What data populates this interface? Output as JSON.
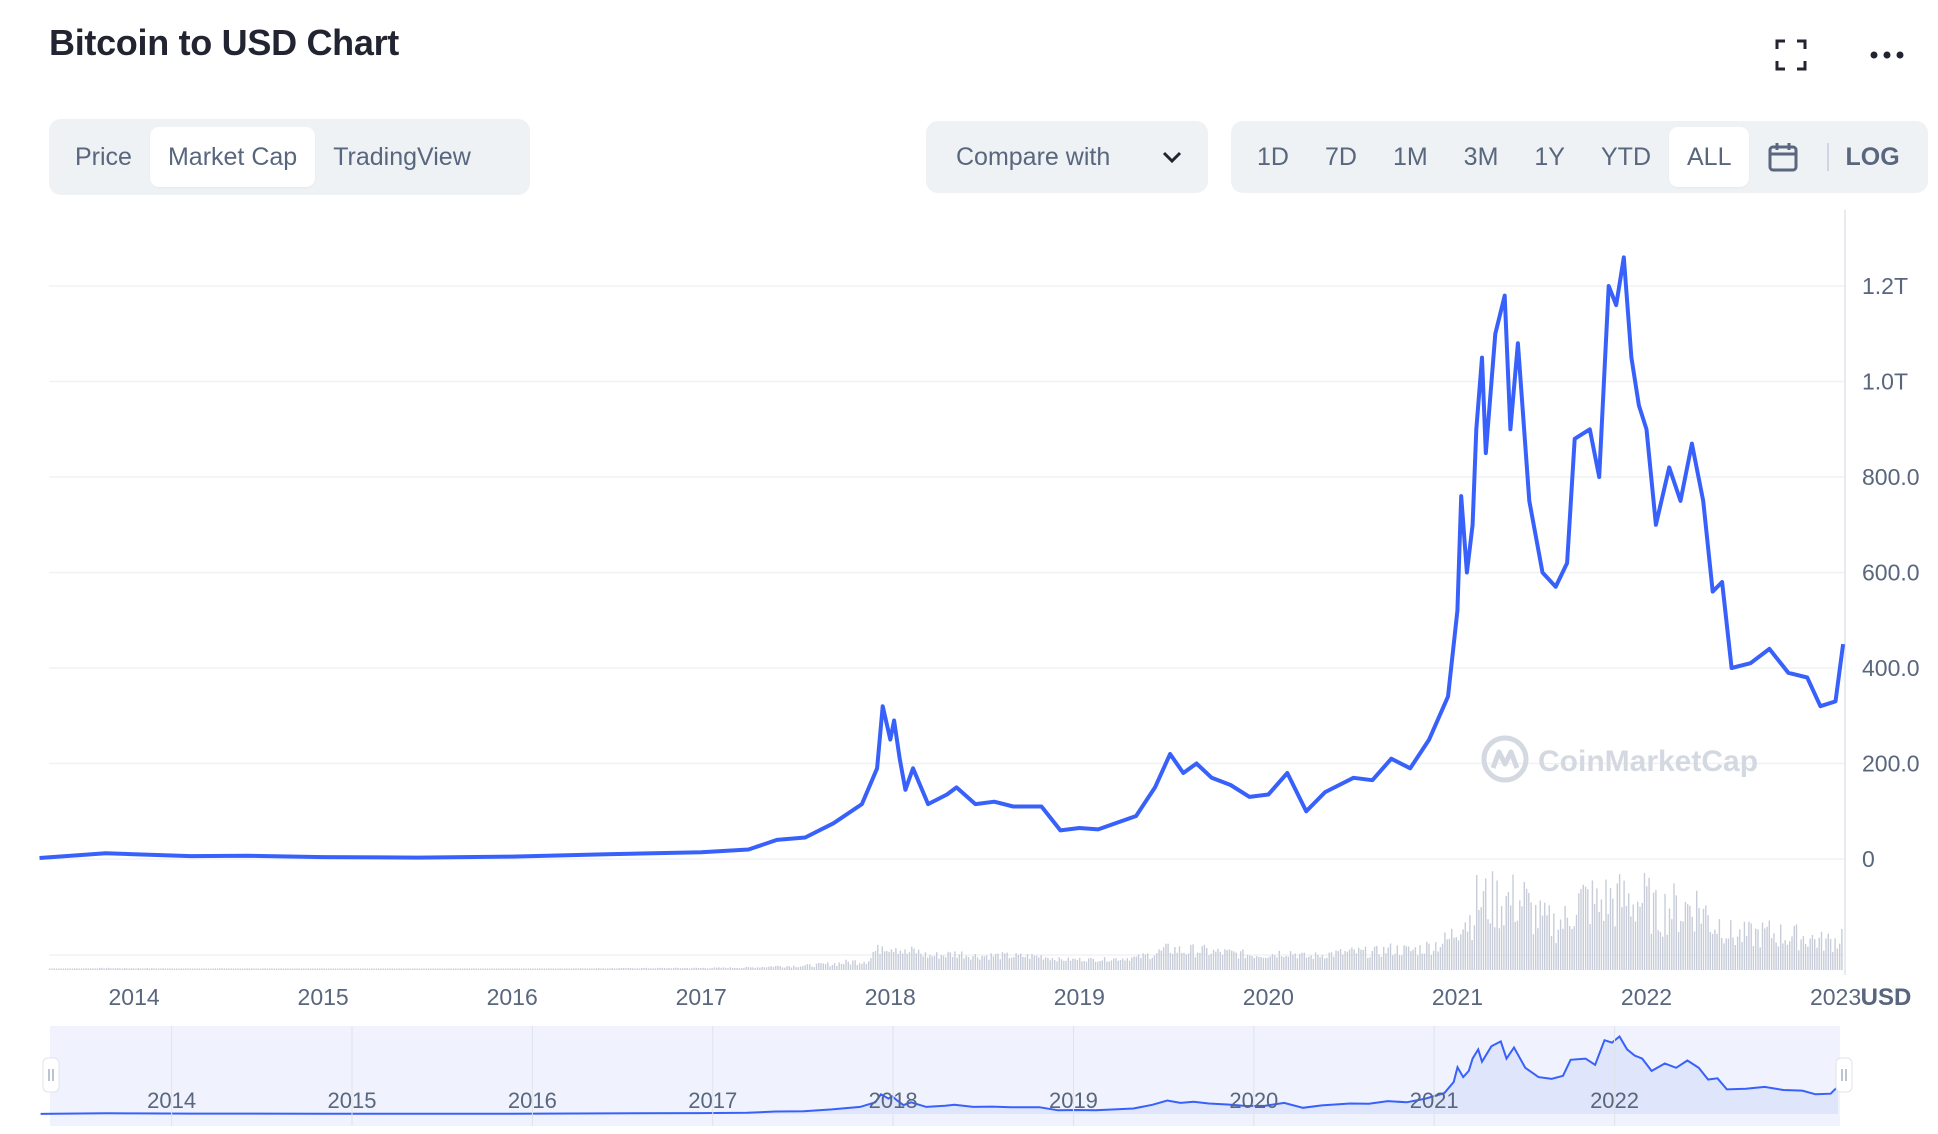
{
  "header": {
    "title": "Bitcoin to USD Chart"
  },
  "icons": {
    "fullscreen": "fullscreen-icon",
    "more": "more-icon",
    "calendar": "calendar-icon",
    "chevron": "chevron-down-icon",
    "logo": "coinmarketcap-logo-icon"
  },
  "view_tabs": [
    {
      "label": "Price",
      "active": false
    },
    {
      "label": "Market Cap",
      "active": true
    },
    {
      "label": "TradingView",
      "active": false
    }
  ],
  "compare": {
    "label": "Compare with"
  },
  "ranges": [
    {
      "label": "1D",
      "active": false
    },
    {
      "label": "7D",
      "active": false
    },
    {
      "label": "1M",
      "active": false
    },
    {
      "label": "3M",
      "active": false
    },
    {
      "label": "1Y",
      "active": false
    },
    {
      "label": "YTD",
      "active": false
    },
    {
      "label": "ALL",
      "active": true
    }
  ],
  "log_label": "LOG",
  "watermark": "CoinMarketCap",
  "colors": {
    "line": "#3861fb",
    "grid": "#eff2f5",
    "axis_text": "#58667e",
    "volume": "#c7ccd8",
    "navigator_fill": "#e8ecfb"
  },
  "chart_data": {
    "type": "line",
    "title": "Bitcoin to USD Chart",
    "series": [
      {
        "values": [
          [
            2013.5,
            2
          ],
          [
            2013.85,
            12
          ],
          [
            2014.0,
            10
          ],
          [
            2014.3,
            6
          ],
          [
            2014.6,
            7
          ],
          [
            2015.0,
            4
          ],
          [
            2015.5,
            3
          ],
          [
            2016.0,
            5
          ],
          [
            2016.5,
            10
          ],
          [
            2017.0,
            14
          ],
          [
            2017.25,
            20
          ],
          [
            2017.4,
            40
          ],
          [
            2017.55,
            45
          ],
          [
            2017.7,
            75
          ],
          [
            2017.85,
            115
          ],
          [
            2017.93,
            190
          ],
          [
            2017.96,
            320
          ],
          [
            2018.0,
            250
          ],
          [
            2018.02,
            290
          ],
          [
            2018.05,
            210
          ],
          [
            2018.08,
            145
          ],
          [
            2018.12,
            190
          ],
          [
            2018.2,
            115
          ],
          [
            2018.3,
            135
          ],
          [
            2018.35,
            150
          ],
          [
            2018.45,
            115
          ],
          [
            2018.55,
            120
          ],
          [
            2018.65,
            110
          ],
          [
            2018.8,
            110
          ],
          [
            2018.9,
            60
          ],
          [
            2019.0,
            65
          ],
          [
            2019.1,
            62
          ],
          [
            2019.3,
            90
          ],
          [
            2019.4,
            150
          ],
          [
            2019.48,
            220
          ],
          [
            2019.55,
            180
          ],
          [
            2019.62,
            200
          ],
          [
            2019.7,
            170
          ],
          [
            2019.8,
            155
          ],
          [
            2019.9,
            130
          ],
          [
            2020.0,
            135
          ],
          [
            2020.1,
            180
          ],
          [
            2020.2,
            100
          ],
          [
            2020.3,
            140
          ],
          [
            2020.45,
            170
          ],
          [
            2020.55,
            165
          ],
          [
            2020.65,
            210
          ],
          [
            2020.75,
            190
          ],
          [
            2020.85,
            250
          ],
          [
            2020.95,
            340
          ],
          [
            2021.0,
            520
          ],
          [
            2021.02,
            760
          ],
          [
            2021.05,
            600
          ],
          [
            2021.08,
            700
          ],
          [
            2021.1,
            900
          ],
          [
            2021.13,
            1050
          ],
          [
            2021.15,
            850
          ],
          [
            2021.2,
            1100
          ],
          [
            2021.25,
            1180
          ],
          [
            2021.28,
            900
          ],
          [
            2021.32,
            1080
          ],
          [
            2021.38,
            750
          ],
          [
            2021.45,
            600
          ],
          [
            2021.52,
            570
          ],
          [
            2021.58,
            620
          ],
          [
            2021.62,
            880
          ],
          [
            2021.7,
            900
          ],
          [
            2021.75,
            800
          ],
          [
            2021.8,
            1200
          ],
          [
            2021.84,
            1160
          ],
          [
            2021.88,
            1260
          ],
          [
            2021.92,
            1050
          ],
          [
            2021.96,
            950
          ],
          [
            2022.0,
            900
          ],
          [
            2022.05,
            700
          ],
          [
            2022.12,
            820
          ],
          [
            2022.18,
            750
          ],
          [
            2022.24,
            870
          ],
          [
            2022.3,
            750
          ],
          [
            2022.35,
            560
          ],
          [
            2022.4,
            580
          ],
          [
            2022.45,
            400
          ],
          [
            2022.55,
            410
          ],
          [
            2022.65,
            440
          ],
          [
            2022.75,
            390
          ],
          [
            2022.85,
            380
          ],
          [
            2022.92,
            320
          ],
          [
            2023.0,
            330
          ],
          [
            2023.04,
            450
          ]
        ]
      }
    ],
    "x_ticks": [
      "2014",
      "2015",
      "2016",
      "2017",
      "2018",
      "2019",
      "2020",
      "2021",
      "2022",
      "2023"
    ],
    "y_ticks": [
      "0",
      "200.0",
      "400.0",
      "600.0",
      "800.0",
      "1.0T",
      "1.2T"
    ],
    "y_unit_label": "USD",
    "navigator_ticks": [
      "2014",
      "2015",
      "2016",
      "2017",
      "2018",
      "2019",
      "2020",
      "2021",
      "2022"
    ],
    "xlim": [
      2013.55,
      2023.05
    ],
    "ylim": [
      0,
      1300
    ],
    "y_scale": "linear",
    "grid": true,
    "has_volume_bars": true,
    "has_navigator": true
  }
}
